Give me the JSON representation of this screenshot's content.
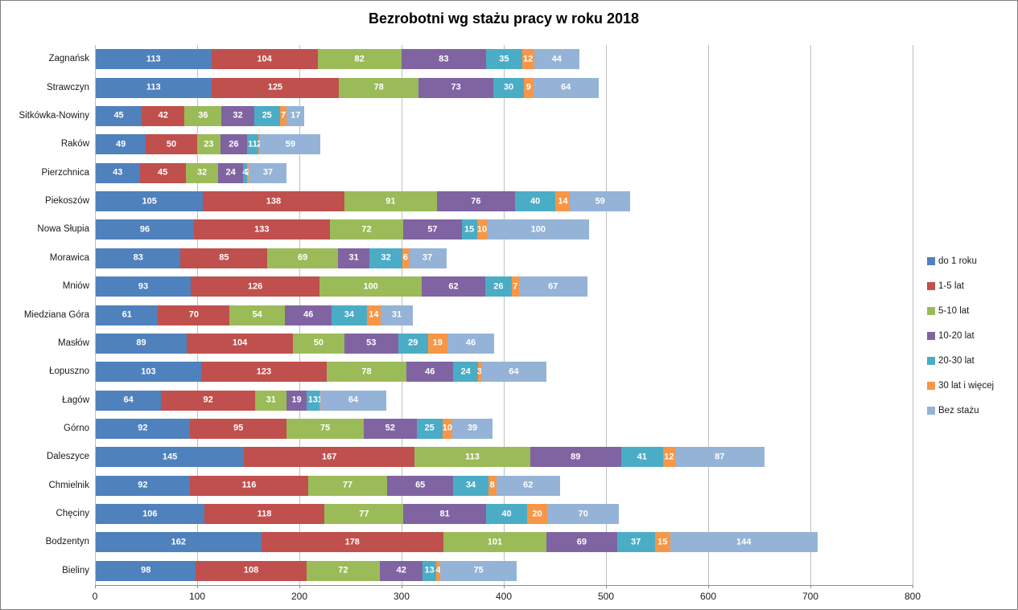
{
  "chart_data": {
    "type": "bar",
    "orientation": "horizontal-stacked",
    "title": "Bezrobotni wg stażu pracy w roku 2018",
    "categories": [
      "Zagnańsk",
      "Strawczyn",
      "Sitkówka-Nowiny",
      "Raków",
      "Pierzchnica",
      "Piekoszów",
      "Nowa Słupia",
      "Morawica",
      "Mniów",
      "Miedziana Góra",
      "Masłów",
      "Łopuszno",
      "Łagów",
      "Górno",
      "Daleszyce",
      "Chmielnik",
      "Chęciny",
      "Bodzentyn",
      "Bieliny"
    ],
    "series": [
      {
        "name": "do 1 roku",
        "color": "#4F81BD",
        "values": [
          113,
          113,
          45,
          49,
          43,
          105,
          96,
          83,
          93,
          61,
          89,
          103,
          64,
          92,
          145,
          92,
          106,
          162,
          98
        ]
      },
      {
        "name": "1-5 lat",
        "color": "#C0504D",
        "values": [
          104,
          125,
          42,
          50,
          45,
          138,
          133,
          85,
          126,
          70,
          104,
          123,
          92,
          95,
          167,
          116,
          118,
          178,
          108
        ]
      },
      {
        "name": "5-10 lat",
        "color": "#9BBB59",
        "values": [
          82,
          78,
          36,
          23,
          32,
          91,
          72,
          69,
          100,
          54,
          50,
          78,
          31,
          75,
          113,
          77,
          77,
          101,
          72
        ]
      },
      {
        "name": "10-20 lat",
        "color": "#8064A2",
        "values": [
          83,
          73,
          32,
          26,
          24,
          76,
          57,
          31,
          62,
          46,
          53,
          46,
          19,
          52,
          89,
          65,
          81,
          69,
          42
        ]
      },
      {
        "name": "20-30 lat",
        "color": "#4BACC6",
        "values": [
          35,
          30,
          25,
          11,
          4,
          40,
          15,
          32,
          26,
          34,
          29,
          24,
          13,
          25,
          41,
          34,
          40,
          37,
          13
        ]
      },
      {
        "name": "30 lat i więcej",
        "color": "#F79646",
        "values": [
          12,
          9,
          7,
          2,
          2,
          14,
          10,
          6,
          7,
          14,
          19,
          3,
          1,
          10,
          12,
          8,
          20,
          15,
          4
        ]
      },
      {
        "name": "Bez stażu",
        "color": "#95B3D7",
        "values": [
          44,
          64,
          17,
          59,
          37,
          59,
          100,
          37,
          67,
          31,
          46,
          64,
          64,
          39,
          87,
          62,
          70,
          144,
          75
        ]
      }
    ],
    "xlim": [
      0,
      800
    ],
    "xticks": [
      0,
      100,
      200,
      300,
      400,
      500,
      600,
      700,
      800
    ],
    "grid": true,
    "legend_position": "right",
    "grid_color": "#BFBFBF",
    "axis_color": "#8C8C8C",
    "data_label_color": "#FFFFFF"
  }
}
